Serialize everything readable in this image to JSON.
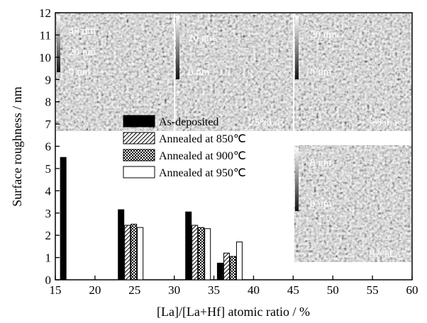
{
  "chart_data": {
    "type": "bar",
    "xlabel": "[La]/[La+Hf] atomic ratio / %",
    "ylabel": "Surface roughness / nm",
    "xlim": [
      15,
      60
    ],
    "ylim": [
      0,
      12
    ],
    "xticks": [
      15,
      20,
      25,
      30,
      35,
      40,
      45,
      50,
      55,
      60
    ],
    "yticks": [
      0,
      1,
      2,
      3,
      4,
      5,
      6,
      7,
      8,
      9,
      10,
      11,
      12
    ],
    "groups": [
      16,
      24.5,
      33,
      37
    ],
    "series": [
      {
        "name": "As-deposited",
        "pattern": "solid",
        "color": "#000000",
        "points": [
          [
            16,
            5.5
          ],
          [
            24.5,
            3.15
          ],
          [
            33,
            3.05
          ],
          [
            37,
            0.75
          ]
        ]
      },
      {
        "name": "Annealed at 850℃",
        "pattern": "diagonal",
        "color": "#000000",
        "points": [
          [
            24.5,
            2.45
          ],
          [
            33,
            2.45
          ],
          [
            37,
            1.2
          ]
        ]
      },
      {
        "name": "Annealed at 900℃",
        "pattern": "crosshatch",
        "color": "#000000",
        "points": [
          [
            24.5,
            2.5
          ],
          [
            33,
            2.35
          ],
          [
            37,
            1.05
          ]
        ]
      },
      {
        "name": "Annealed at 950℃",
        "pattern": "open",
        "color": "#ffffff",
        "points": [
          [
            24.5,
            2.35
          ],
          [
            33,
            2.3
          ],
          [
            37,
            1.7
          ]
        ]
      }
    ],
    "legend": {
      "position": "center-left"
    },
    "insets": [
      {
        "caption": "17%La",
        "scale": [
          "40 nm",
          "20 nm",
          "0 nm"
        ]
      },
      {
        "caption": "25%La",
        "scale": [
          "20 nm",
          "0 nm"
        ]
      },
      {
        "caption": "33%La",
        "scale": [
          "20 nm",
          "0 nm"
        ]
      },
      {
        "caption": "37%La",
        "scale": [
          "8 nm",
          "0 nm"
        ]
      }
    ]
  }
}
